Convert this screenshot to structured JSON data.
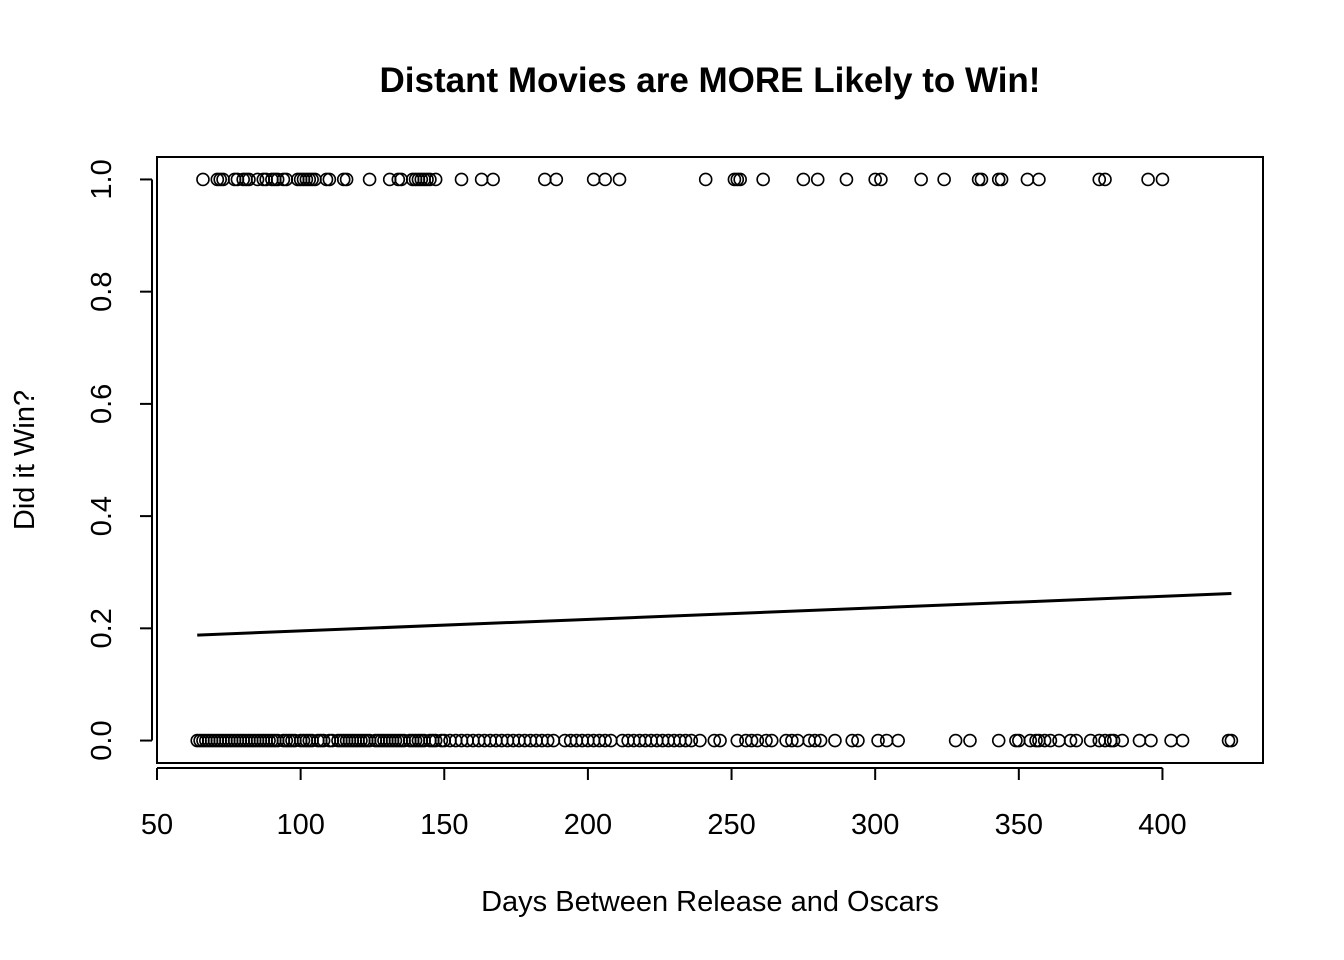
{
  "chart_data": {
    "type": "scatter",
    "title": "Distant Movies are MORE Likely to Win!",
    "xlabel": "Days Between Release and Oscars",
    "ylabel": "Did it Win?",
    "xlim": [
      50,
      435
    ],
    "ylim": [
      -0.04,
      1.04
    ],
    "x_ticks": [
      50,
      100,
      150,
      200,
      250,
      300,
      350,
      400
    ],
    "x_tick_labels": [
      "50",
      "100",
      "150",
      "200",
      "250",
      "300",
      "350",
      "400"
    ],
    "y_ticks": [
      0.0,
      0.2,
      0.4,
      0.6,
      0.8,
      1.0
    ],
    "y_tick_labels": [
      "0.0",
      "0.2",
      "0.4",
      "0.6",
      "0.8",
      "1.0"
    ],
    "grid": false,
    "legend": "none",
    "series": [
      {
        "marker": "open-circle",
        "points_y1_x": [
          66,
          71,
          72,
          73,
          77,
          78,
          80,
          81,
          82,
          85,
          87,
          88,
          90,
          91,
          92,
          94,
          95,
          99,
          100,
          101,
          102,
          103,
          104,
          105,
          109,
          110,
          115,
          116,
          124,
          131,
          134,
          135,
          139,
          140,
          141,
          142,
          143,
          144,
          145,
          147,
          156,
          163,
          167,
          185,
          189,
          202,
          206,
          211,
          241,
          251,
          252,
          253,
          261,
          275,
          280,
          290,
          300,
          302,
          316,
          324,
          336,
          337,
          343,
          344,
          353,
          357,
          378,
          380,
          395,
          400
        ],
        "points_y0_x": [
          64,
          65,
          66,
          67,
          68,
          69,
          70,
          71,
          72,
          73,
          74,
          75,
          76,
          77,
          78,
          79,
          80,
          81,
          82,
          83,
          84,
          85,
          86,
          87,
          88,
          89,
          90,
          91,
          92,
          94,
          95,
          96,
          97,
          98,
          100,
          101,
          102,
          103,
          104,
          106,
          107,
          108,
          110,
          111,
          113,
          114,
          115,
          116,
          117,
          118,
          119,
          120,
          121,
          122,
          123,
          124,
          126,
          127,
          128,
          129,
          130,
          131,
          132,
          133,
          134,
          135,
          136,
          138,
          139,
          140,
          141,
          142,
          143,
          145,
          146,
          147,
          149,
          150,
          152,
          154,
          156,
          158,
          160,
          162,
          164,
          166,
          168,
          170,
          172,
          174,
          176,
          178,
          180,
          182,
          184,
          186,
          188,
          192,
          194,
          196,
          198,
          200,
          202,
          204,
          206,
          208,
          212,
          214,
          216,
          218,
          220,
          222,
          224,
          226,
          228,
          230,
          232,
          234,
          236,
          239,
          244,
          246,
          252,
          255,
          257,
          259,
          262,
          264,
          269,
          271,
          273,
          277,
          279,
          281,
          286,
          292,
          294,
          301,
          304,
          308,
          328,
          333,
          343,
          349,
          350,
          354,
          356,
          357,
          359,
          361,
          364,
          368,
          370,
          375,
          378,
          380,
          382,
          383,
          386,
          392,
          396,
          403,
          407,
          423,
          424
        ]
      },
      {
        "type": "line",
        "x": [
          64,
          424
        ],
        "y": [
          0.188,
          0.262
        ]
      }
    ]
  }
}
